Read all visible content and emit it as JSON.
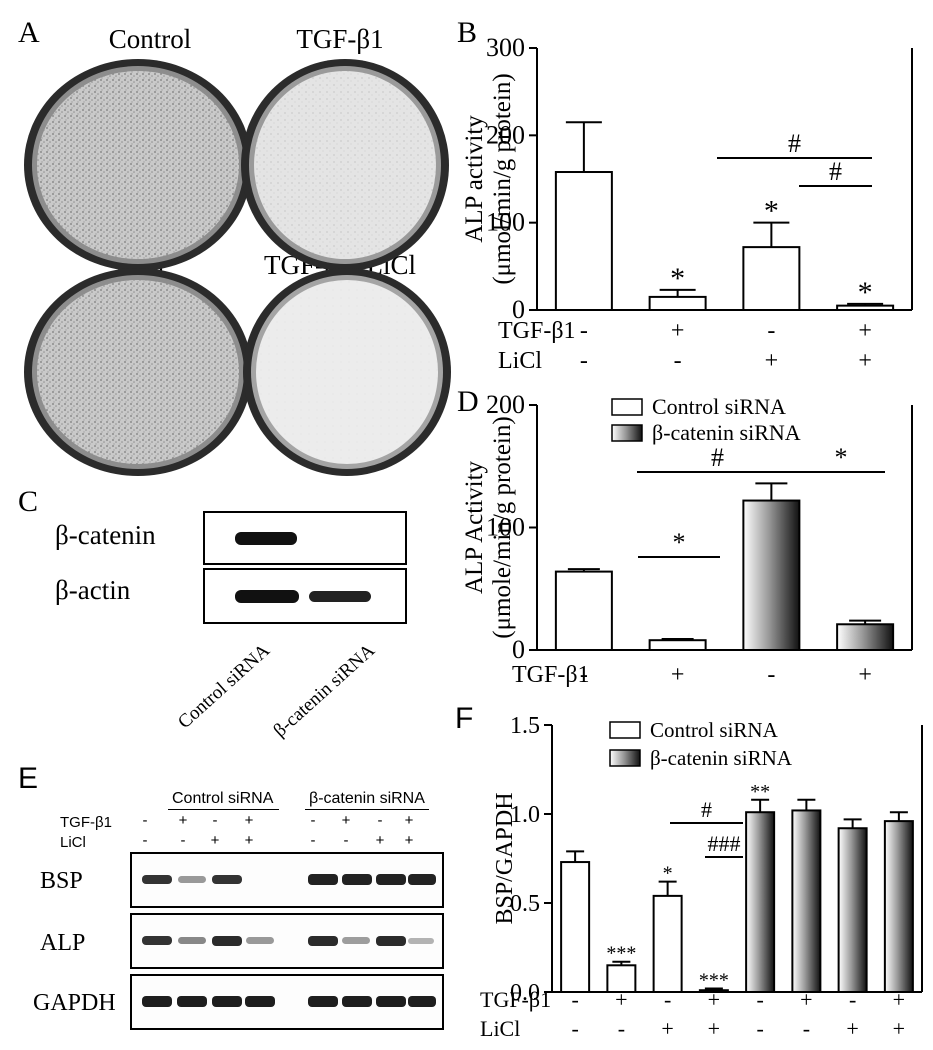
{
  "panels": {
    "A": {
      "label": "A",
      "dishes": [
        "Control",
        "TGF-β1",
        "LiCl",
        "TGF-β1+LiCl"
      ]
    },
    "B": {
      "label": "B"
    },
    "C": {
      "label": "C",
      "bands": [
        "β-catenin",
        "β-actin"
      ],
      "lanes": [
        "Control siRNA",
        "β-catenin siRNA"
      ]
    },
    "D": {
      "label": "D"
    },
    "E": {
      "label": "E",
      "groups": [
        "Control siRNA",
        "β-catenin siRNA"
      ],
      "row_labels": [
        "TGF-β1",
        "LiCl"
      ],
      "tgf_signs": [
        "-",
        "+",
        "-",
        "+",
        "-",
        "+",
        "-",
        "+"
      ],
      "licl_signs": [
        "-",
        "-",
        "+",
        "+",
        "-",
        "-",
        "+",
        "+"
      ],
      "genes": [
        "BSP",
        "ALP",
        "GAPDH"
      ]
    },
    "F": {
      "label": "F"
    }
  },
  "chart_data": [
    {
      "panel": "B",
      "type": "bar",
      "ylabel": "ALP activity",
      "ylabel_unit": "(μmol/min/g protein)",
      "ylim": [
        0,
        300
      ],
      "yticks": [
        0,
        100,
        200,
        300
      ],
      "values": [
        158,
        15,
        72,
        5
      ],
      "errors": [
        57,
        8,
        28,
        2
      ],
      "annotations": [
        "",
        "*",
        "*",
        "*"
      ],
      "conditions": [
        {
          "label": "TGF-β1",
          "signs": [
            "-",
            "+",
            "-",
            "+"
          ]
        },
        {
          "label": "LiCl",
          "signs": [
            "-",
            "-",
            "+",
            "+"
          ]
        }
      ],
      "comparisons": [
        {
          "from": 1,
          "to": 3,
          "mark": "#"
        },
        {
          "from": 2,
          "to": 3,
          "mark": "#"
        }
      ]
    },
    {
      "panel": "D",
      "type": "bar",
      "ylabel": "ALP Activity",
      "ylabel_unit": "(μmole/min/g protein)",
      "ylim": [
        0,
        200
      ],
      "yticks": [
        0,
        100,
        200
      ],
      "values": [
        64,
        8,
        122,
        21
      ],
      "errors": [
        2,
        1,
        14,
        3
      ],
      "fills": [
        "white",
        "white",
        "gradient",
        "gradient"
      ],
      "legend": [
        "Control siRNA",
        "β-catenin siRNA"
      ],
      "legend_position": "top-left",
      "conditions": [
        {
          "label": "TGF-β1",
          "signs": [
            "-",
            "+",
            "-",
            "+"
          ]
        }
      ],
      "comparisons": [
        {
          "from": 0,
          "to": 1,
          "mark": "*"
        },
        {
          "from": 0,
          "to": 2,
          "mark": "#"
        },
        {
          "from": 2,
          "to": 3,
          "mark": "*"
        }
      ]
    },
    {
      "panel": "F",
      "type": "bar",
      "ylabel": "BSP/GAPDH",
      "ylim": [
        0,
        1.5
      ],
      "yticks": [
        "0.0",
        "0.5",
        "1.0",
        "1.5"
      ],
      "values": [
        0.73,
        0.15,
        0.54,
        0.01,
        1.01,
        1.02,
        0.92,
        0.96
      ],
      "errors": [
        0.06,
        0.02,
        0.08,
        0.01,
        0.07,
        0.06,
        0.05,
        0.05
      ],
      "fills": [
        "white",
        "white",
        "white",
        "white",
        "gradient",
        "gradient",
        "gradient",
        "gradient"
      ],
      "annotations": [
        "",
        "***",
        "*",
        "***",
        "**",
        "",
        "",
        ""
      ],
      "legend": [
        "Control siRNA",
        "β-catenin siRNA"
      ],
      "legend_position": "top-left",
      "conditions": [
        {
          "label": "TGF-β1",
          "signs": [
            "-",
            "+",
            "-",
            "+",
            "-",
            "+",
            "-",
            "+"
          ]
        },
        {
          "label": "LiCl",
          "signs": [
            "-",
            "-",
            "+",
            "+",
            "-",
            "-",
            "+",
            "+"
          ]
        }
      ],
      "comparisons": [
        {
          "from": 1,
          "to": 3,
          "mark": "#"
        },
        {
          "from": 2,
          "to": 3,
          "mark": "###"
        }
      ]
    }
  ]
}
